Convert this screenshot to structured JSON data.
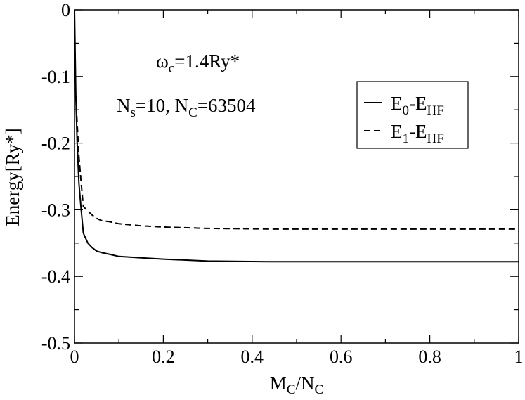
{
  "chart_data": {
    "type": "line",
    "xlabel": {
      "main": "M",
      "sub1": "C",
      "sep": "/N",
      "sub2": "C"
    },
    "ylabel": "Energy[Ry*]",
    "xlim": [
      0,
      1
    ],
    "ylim": [
      -0.5,
      0
    ],
    "x_ticks": [
      0,
      0.2,
      0.4,
      0.6,
      0.8,
      1
    ],
    "x_tick_labels": [
      "0",
      "0.2",
      "0.4",
      "0.6",
      "0.8",
      "1"
    ],
    "y_ticks": [
      0,
      -0.1,
      -0.2,
      -0.3,
      -0.4,
      -0.5
    ],
    "y_tick_labels": [
      "0",
      "-0.1",
      "-0.2",
      "-0.3",
      "-0.4",
      "-0.5"
    ],
    "grid": false,
    "legend_position": "top-right",
    "annotations": {
      "omega": {
        "main": "ω",
        "sub": "c",
        "rest": "=1.4Ry*"
      },
      "params": {
        "p1": "N",
        "p1_sub": "s",
        "p1_rest": "=10, N",
        "p2_sub": "C",
        "p2_rest": "=63504"
      }
    },
    "series": [
      {
        "legend": {
          "a": "E",
          "a_sub": "0",
          "b": "-E",
          "b_sub": "HF"
        },
        "style": "solid",
        "color": "#000000",
        "x": [
          0.0,
          0.003,
          0.006,
          0.01,
          0.015,
          0.02,
          0.03,
          0.04,
          0.05,
          0.06,
          0.08,
          0.1,
          0.15,
          0.2,
          0.3,
          0.45,
          0.6,
          0.8,
          1.0
        ],
        "y": [
          0.0,
          -0.13,
          -0.2,
          -0.26,
          -0.3,
          -0.335,
          -0.35,
          -0.357,
          -0.362,
          -0.364,
          -0.367,
          -0.37,
          -0.372,
          -0.374,
          -0.377,
          -0.378,
          -0.378,
          -0.378,
          -0.378
        ]
      },
      {
        "legend": {
          "a": "E",
          "a_sub": "1",
          "b": "-E",
          "b_sub": "HF"
        },
        "style": "dashed",
        "color": "#000000",
        "x": [
          0.003,
          0.006,
          0.01,
          0.015,
          0.02,
          0.03,
          0.04,
          0.05,
          0.06,
          0.08,
          0.1,
          0.15,
          0.2,
          0.3,
          0.45,
          0.6,
          0.8,
          1.0
        ],
        "y": [
          -0.13,
          -0.17,
          -0.22,
          -0.26,
          -0.295,
          -0.302,
          -0.308,
          -0.313,
          -0.316,
          -0.318,
          -0.321,
          -0.324,
          -0.326,
          -0.328,
          -0.329,
          -0.329,
          -0.329,
          -0.329
        ]
      }
    ]
  }
}
